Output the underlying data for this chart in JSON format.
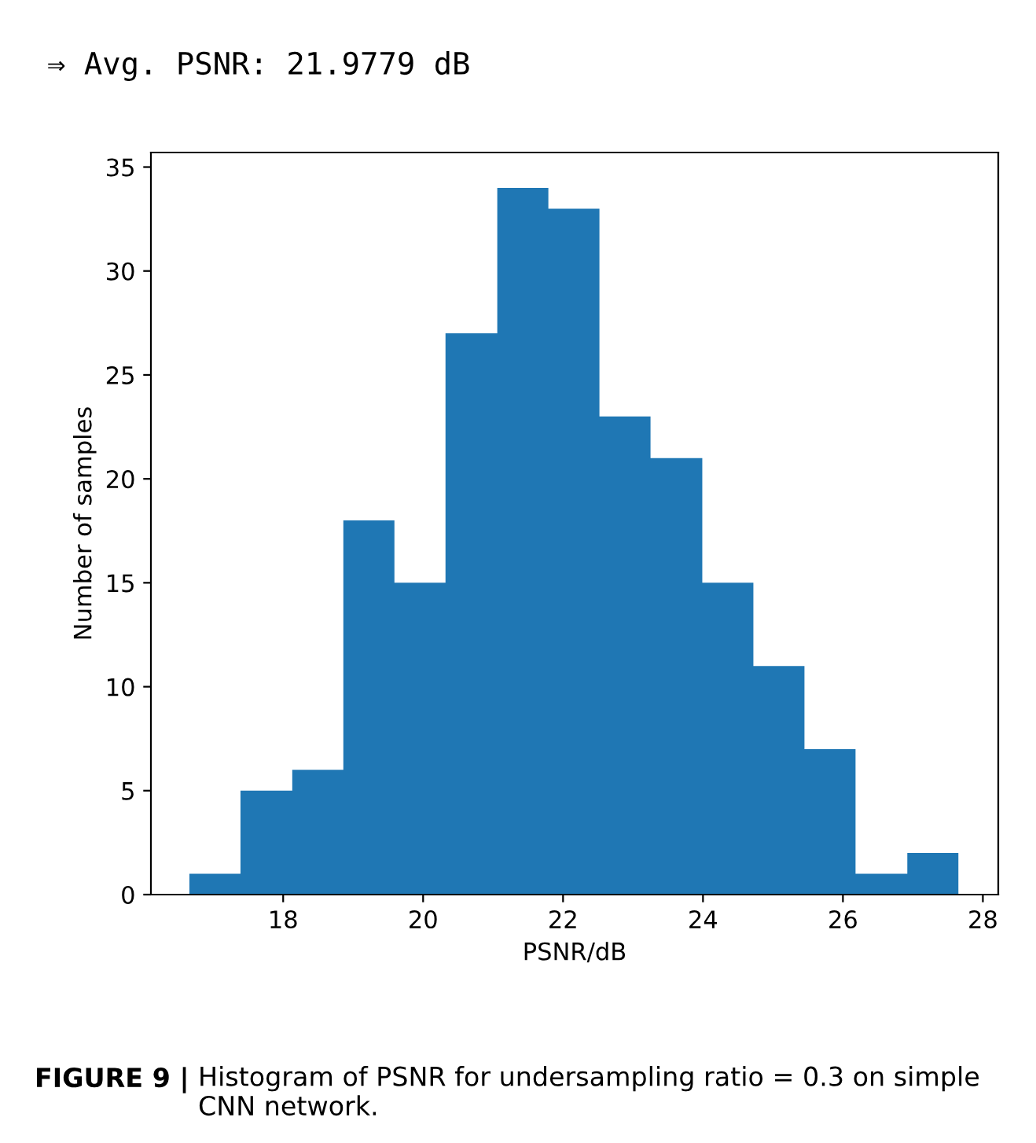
{
  "chart_data": {
    "type": "histogram",
    "title": "⇒ Avg. PSNR: 21.9779 dB",
    "xlabel": "PSNR/dB",
    "ylabel": "Number of samples",
    "bins": [
      16.66,
      17.39,
      18.13,
      18.86,
      19.59,
      20.32,
      21.06,
      21.79,
      22.52,
      23.25,
      23.99,
      24.72,
      25.45,
      26.18,
      26.92,
      27.65
    ],
    "values": [
      1,
      5,
      6,
      18,
      15,
      27,
      34,
      33,
      23,
      21,
      15,
      11,
      7,
      1,
      2
    ],
    "color": "#1f77b4",
    "xlim": [
      16.11,
      28.22
    ],
    "ylim": [
      0,
      35.7
    ],
    "xticks": [
      18,
      20,
      22,
      24,
      26,
      28
    ],
    "yticks": [
      0,
      5,
      10,
      15,
      20,
      25,
      30,
      35
    ],
    "grid": false,
    "annotations": [
      "FIGURE 9 |",
      "Histogram of PSNR for undersampling ratio = 0.3 on simple CNN network."
    ]
  }
}
